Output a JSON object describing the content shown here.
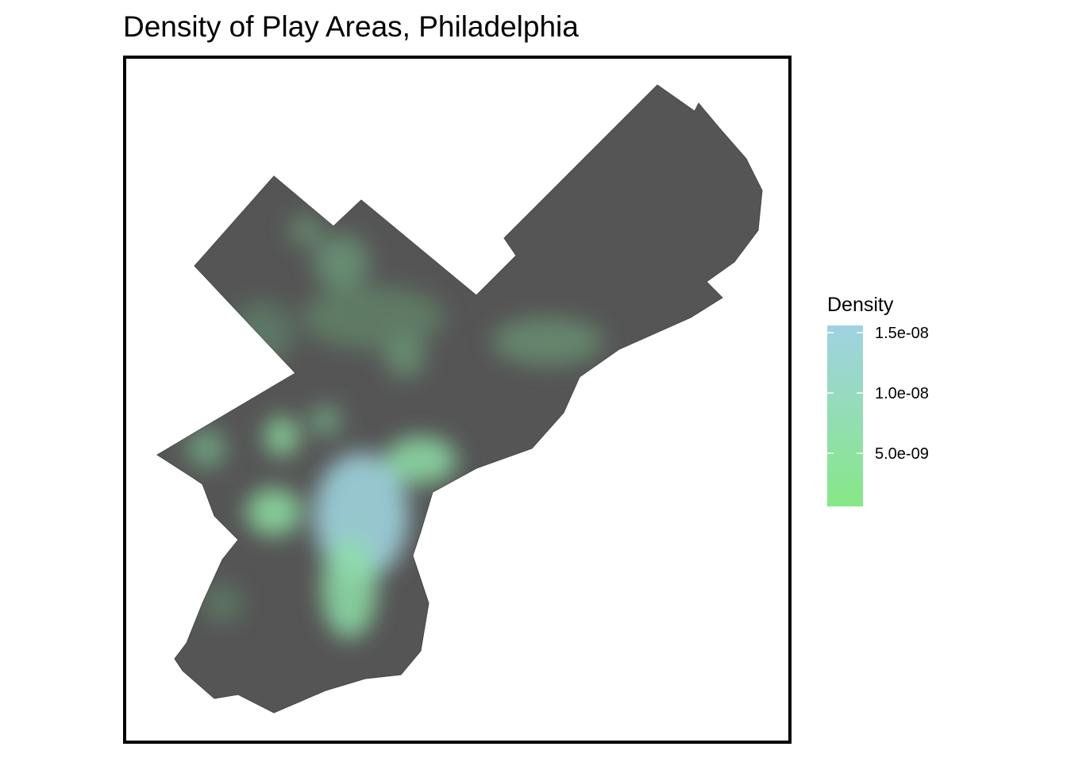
{
  "chart_data": {
    "type": "density_map",
    "title": "Density of Play Areas, Philadelphia",
    "legend_title": "Density",
    "legend_range": [
      6e-10,
      1.56e-08
    ],
    "legend_ticks": [
      {
        "value": 5e-09,
        "label": "5.0e-09"
      },
      {
        "value": 1e-08,
        "label": "1.0e-08"
      },
      {
        "value": 1.5e-08,
        "label": "1.5e-08"
      }
    ],
    "colors": [
      "#86e886",
      "#a0d2e3"
    ]
  }
}
